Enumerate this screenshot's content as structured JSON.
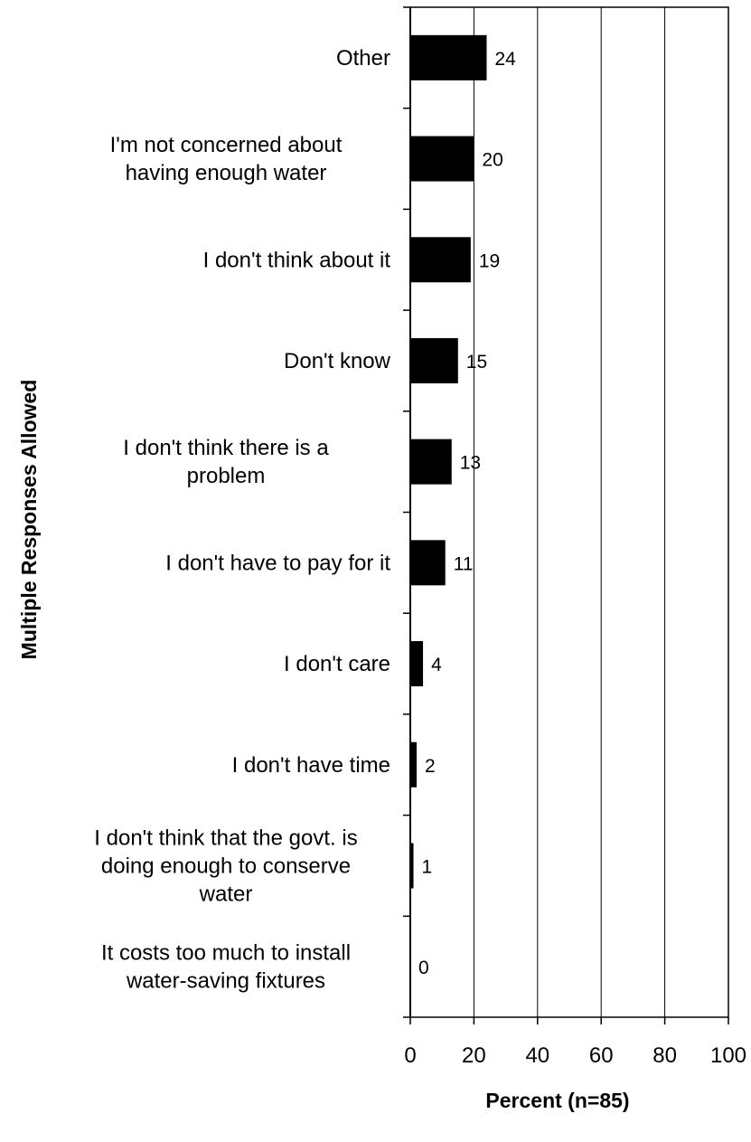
{
  "chart_data": {
    "type": "bar",
    "orientation": "horizontal",
    "categories": [
      "Other",
      "I'm not concerned about having enough water",
      "I don't think about it",
      "Don't know",
      "I don't think there is a problem",
      "I don't have to pay for it",
      "I don't care",
      "I don't have time",
      "I don't think that the govt. is doing enough to conserve water",
      "It costs too much to install water-saving fixtures"
    ],
    "category_lines": [
      [
        "Other"
      ],
      [
        "I'm not concerned about",
        "having enough water"
      ],
      [
        "I don't think about it"
      ],
      [
        "Don't know"
      ],
      [
        "I don't think there is a",
        "problem"
      ],
      [
        "I don't have to pay for it"
      ],
      [
        "I don't care"
      ],
      [
        "I don't have time"
      ],
      [
        "I don't think that the govt. is",
        "doing enough to conserve",
        "water"
      ],
      [
        "It costs too much to install",
        "water-saving fixtures"
      ]
    ],
    "values": [
      24,
      20,
      19,
      15,
      13,
      11,
      4,
      2,
      1,
      0
    ],
    "data_labels": [
      "24",
      "20",
      "19",
      "15",
      "13",
      "11",
      "4",
      "2",
      "1",
      "0"
    ],
    "xlabel": "Percent (n=85)",
    "ylabel": "Multiple Responses Allowed",
    "xlim": [
      0,
      100
    ],
    "xticks": [
      0,
      20,
      40,
      60,
      80,
      100
    ],
    "xtick_labels": [
      "0",
      "20",
      "40",
      "60",
      "80",
      "100"
    ],
    "grid": "vertical",
    "bar_color": "#000000",
    "legend": "none"
  }
}
